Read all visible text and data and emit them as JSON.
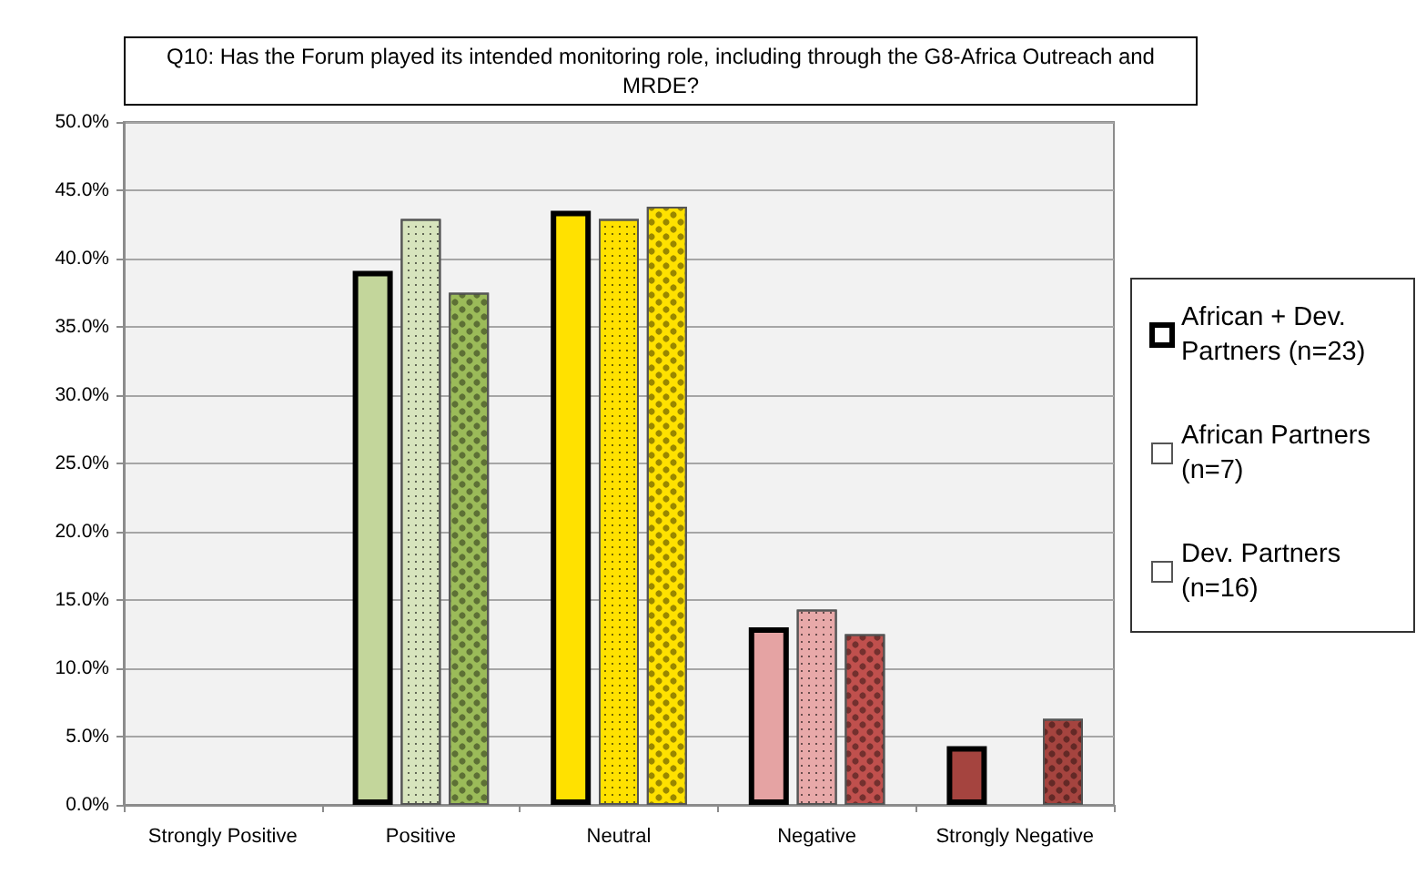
{
  "chart_data": {
    "type": "bar",
    "title": "Q10: Has the Forum played its intended monitoring role, including through the G8-Africa Outreach and MRDE?",
    "categories": [
      "Strongly Positive",
      "Positive",
      "Neutral",
      "Negative",
      "Strongly Negative"
    ],
    "series": [
      {
        "name": "African + Dev. Partners (n=23)",
        "colors": [
          null,
          "#c3d69b",
          "#ffe100",
          "#e5a3a3",
          "#a5443f"
        ],
        "values": [
          0,
          39.1,
          43.5,
          13.0,
          4.3
        ]
      },
      {
        "name": "African Partners (n=7)",
        "colors": [
          null,
          "#d7e4bd",
          "#ffe100",
          "#e8a9a9",
          null
        ],
        "values": [
          0,
          42.9,
          42.9,
          14.3,
          0
        ]
      },
      {
        "name": "Dev. Partners (n=16)",
        "colors": [
          null,
          "#9bbb59",
          "#ffe100",
          "#c0504d",
          "#a5443f"
        ],
        "values": [
          0,
          37.5,
          43.8,
          12.5,
          6.3
        ]
      }
    ],
    "ylim": [
      0,
      50
    ],
    "yticks": [
      {
        "value": 0,
        "label": "0.0%"
      },
      {
        "value": 5,
        "label": "5.0%"
      },
      {
        "value": 10,
        "label": "10.0%"
      },
      {
        "value": 15,
        "label": "15.0%"
      },
      {
        "value": 20,
        "label": "20.0%"
      },
      {
        "value": 25,
        "label": "25.0%"
      },
      {
        "value": 30,
        "label": "30.0%"
      },
      {
        "value": 35,
        "label": "35.0%"
      },
      {
        "value": 40,
        "label": "40.0%"
      },
      {
        "value": 45,
        "label": "45.0%"
      },
      {
        "value": 50,
        "label": "50.0%"
      }
    ],
    "grid": "y",
    "legend": "right"
  }
}
